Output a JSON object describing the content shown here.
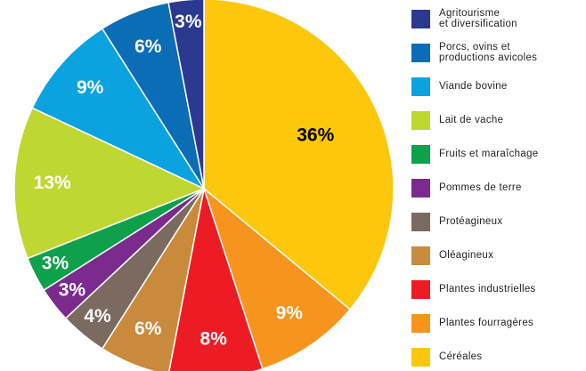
{
  "chart_data": {
    "type": "pie",
    "categories": [
      "Agritourisme\net diversification",
      "Porcs, ovins et\nproductions avicoles",
      "Viande bovine",
      "Lait de vache",
      "Fruits et maraîchage",
      "Pommes de terre",
      "Protéagineux",
      "Oléagineux",
      "Plantes industrielles",
      "Plantes fourragères",
      "Céréales"
    ],
    "values": [
      3,
      6,
      9,
      13,
      3,
      3,
      4,
      6,
      8,
      9,
      36
    ],
    "value_labels": [
      "3%",
      "6%",
      "9%",
      "13%",
      "3%",
      "3%",
      "4%",
      "6%",
      "8%",
      "9%",
      "36%"
    ],
    "colors": [
      "#2b3990",
      "#0b6db6",
      "#0aa3e0",
      "#bfd730",
      "#0ea04b",
      "#7b2a8e",
      "#7a6a60",
      "#c98a3c",
      "#ed1c24",
      "#f7941d",
      "#fdc70b"
    ],
    "legend": "right"
  }
}
